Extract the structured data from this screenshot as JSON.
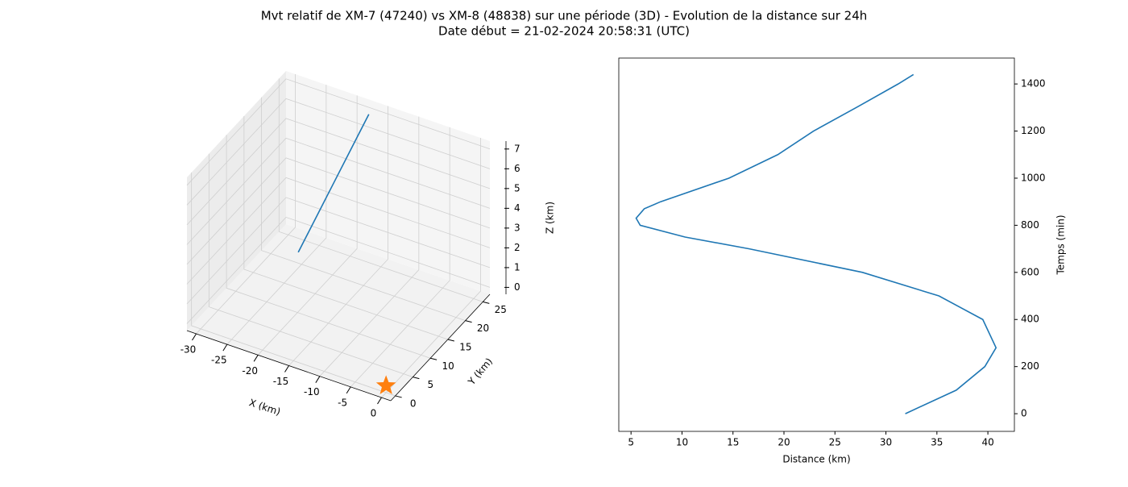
{
  "title": "Mvt relatif de XM-7 (47240) vs XM-8 (48838) sur une période (3D) - Evolution de la distance sur 24h",
  "subtitle": "Date début = 21-02-2024 20:58:31 (UTC)",
  "chart_data": [
    {
      "type": "line3d",
      "x_label": "X (km)",
      "y_label": "Y (km)",
      "z_label": "Z (km)",
      "x": [
        -25.1,
        -23.15,
        -21.2,
        -19.25,
        -17.3
      ],
      "y": [
        19.2,
        20.8,
        22.4,
        24.0,
        25.6
      ],
      "z": [
        0.4,
        2.05,
        3.7,
        5.35,
        7.0
      ],
      "color": "#1f77b4",
      "markers": {
        "x": [
          0
        ],
        "y": [
          0
        ],
        "z": [
          0
        ],
        "color": "#ff7f0e"
      },
      "xlim": [
        -31.5,
        1.5
      ],
      "ylim": [
        -1.3,
        27
      ],
      "zlim": [
        -0.35,
        7.4
      ],
      "xticks": [
        -30,
        -25,
        -20,
        -15,
        -10,
        -5,
        0
      ],
      "yticks": [
        0,
        5,
        10,
        15,
        20,
        25
      ],
      "zticks": [
        0,
        1,
        2,
        3,
        4,
        5,
        6,
        7
      ],
      "grid": true
    },
    {
      "type": "line",
      "x_label": "Distance (km)",
      "y_label": "Temps (min)",
      "x": [
        31.9,
        36.9,
        39.7,
        40.8,
        39.5,
        35.2,
        27.7,
        16.6,
        10.3,
        5.9,
        5.5,
        6.3,
        7.9,
        14.6,
        19.4,
        22.9,
        27.1,
        31.2,
        32.7
      ],
      "values": [
        0,
        100,
        200,
        280,
        400,
        500,
        600,
        700,
        750,
        800,
        830,
        870,
        900,
        1000,
        1100,
        1200,
        1300,
        1400,
        1440
      ],
      "color": "#1f77b4",
      "xlim": [
        3.8,
        42.6
      ],
      "ylim": [
        -75,
        1510
      ],
      "xticks": [
        5,
        10,
        15,
        20,
        25,
        30,
        35,
        40
      ],
      "yticks": [
        0,
        200,
        400,
        600,
        800,
        1000,
        1200,
        1400
      ],
      "y_axis_side": "right",
      "grid": false
    }
  ]
}
